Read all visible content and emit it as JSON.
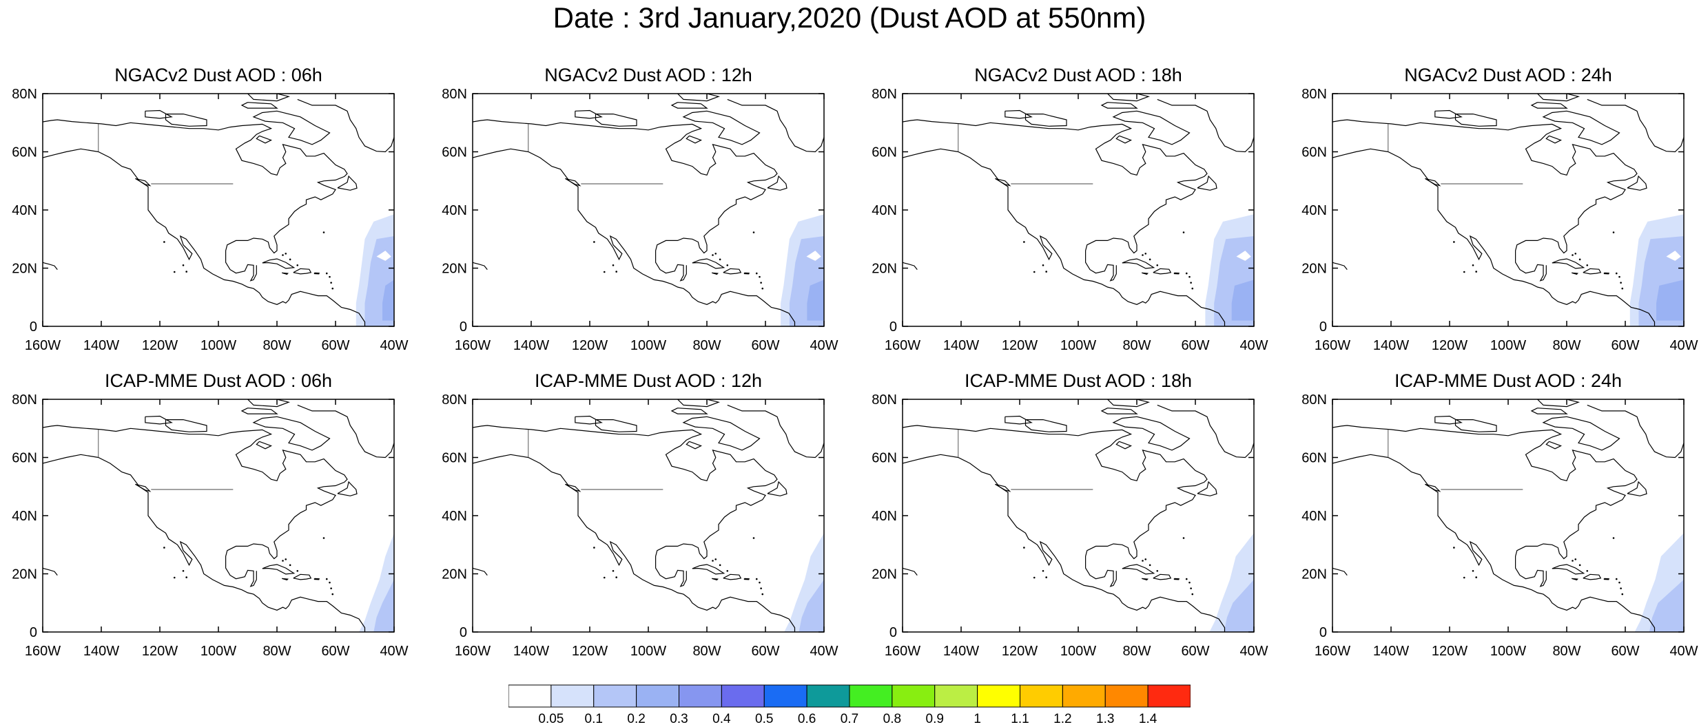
{
  "title": "Date : 3rd January,2020 (Dust AOD at 550nm)",
  "axes": {
    "lat_ticks": [
      "0",
      "20N",
      "40N",
      "60N",
      "80N"
    ],
    "lat_values": [
      0,
      20,
      40,
      60,
      80
    ],
    "lon_ticks": [
      "160W",
      "140W",
      "120W",
      "100W",
      "80W",
      "60W",
      "40W"
    ],
    "lon_values": [
      -160,
      -140,
      -120,
      -100,
      -80,
      -60,
      -40
    ],
    "xlim": [
      -160,
      -40
    ],
    "ylim": [
      0,
      80
    ]
  },
  "panels": [
    {
      "title": "NGACv2 Dust AOD : 06h",
      "model": "NGACv2",
      "hour": "06h"
    },
    {
      "title": "NGACv2 Dust AOD : 12h",
      "model": "NGACv2",
      "hour": "12h"
    },
    {
      "title": "NGACv2 Dust AOD : 18h",
      "model": "NGACv2",
      "hour": "18h"
    },
    {
      "title": "NGACv2 Dust AOD : 24h",
      "model": "NGACv2",
      "hour": "24h"
    },
    {
      "title": "ICAP-MME Dust AOD : 06h",
      "model": "ICAP-MME",
      "hour": "06h"
    },
    {
      "title": "ICAP-MME Dust AOD : 12h",
      "model": "ICAP-MME",
      "hour": "12h"
    },
    {
      "title": "ICAP-MME Dust AOD : 18h",
      "model": "ICAP-MME",
      "hour": "18h"
    },
    {
      "title": "ICAP-MME Dust AOD : 24h",
      "model": "ICAP-MME",
      "hour": "24h"
    }
  ],
  "colorbar": {
    "labels": [
      "0.05",
      "0.1",
      "0.2",
      "0.3",
      "0.4",
      "0.5",
      "0.6",
      "0.7",
      "0.8",
      "0.9",
      "1",
      "1.1",
      "1.2",
      "1.3",
      "1.4"
    ],
    "colors": [
      "#ffffff",
      "#d6e2fb",
      "#b4c6f7",
      "#9ab2f3",
      "#8696f0",
      "#6a6cee",
      "#1a6cf4",
      "#0e9a9a",
      "#44ee22",
      "#88ee11",
      "#bbee44",
      "#ffff00",
      "#ffcc00",
      "#ffaa00",
      "#ff8800",
      "#ff2a10"
    ]
  },
  "map_colors": {
    "coast": "#000000",
    "aod_light": "#d6e2fb",
    "aod_mid": "#b4c6f7",
    "aod_high": "#9ab2f3"
  }
}
